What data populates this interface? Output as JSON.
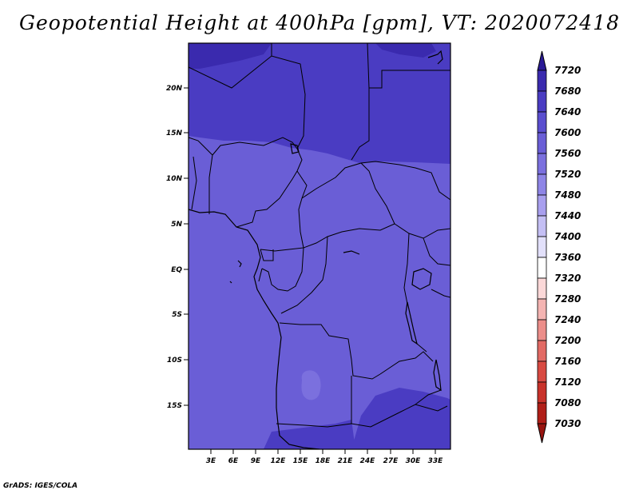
{
  "title": "Geopotential Height at 400hPa [gpm], VT: 2020072418",
  "footer": "GrADS: IGES/COLA",
  "map": {
    "lat_labels": [
      "20N",
      "15N",
      "10N",
      "5N",
      "EQ",
      "5S",
      "10S",
      "15S"
    ],
    "lon_labels": [
      "3E",
      "6E",
      "9E",
      "12E",
      "15E",
      "18E",
      "21E",
      "24E",
      "27E",
      "30E",
      "33E"
    ]
  },
  "colorbar": {
    "levels": [
      "7720",
      "7680",
      "7640",
      "7600",
      "7560",
      "7520",
      "7480",
      "7440",
      "7400",
      "7360",
      "7320",
      "7280",
      "7240",
      "7200",
      "7160",
      "7120",
      "7080",
      "7030"
    ],
    "colors": [
      "#2a1a96",
      "#3a2aae",
      "#4a3cc2",
      "#5a4ecf",
      "#6a5ed6",
      "#7b70de",
      "#8e85e6",
      "#a89fee",
      "#c4bff4",
      "#e2e0fa",
      "#ffffff",
      "#fbd8d8",
      "#f4b4b2",
      "#ec8e8a",
      "#e26a64",
      "#d84a42",
      "#c8322a",
      "#b01e18",
      "#981410"
    ]
  }
}
